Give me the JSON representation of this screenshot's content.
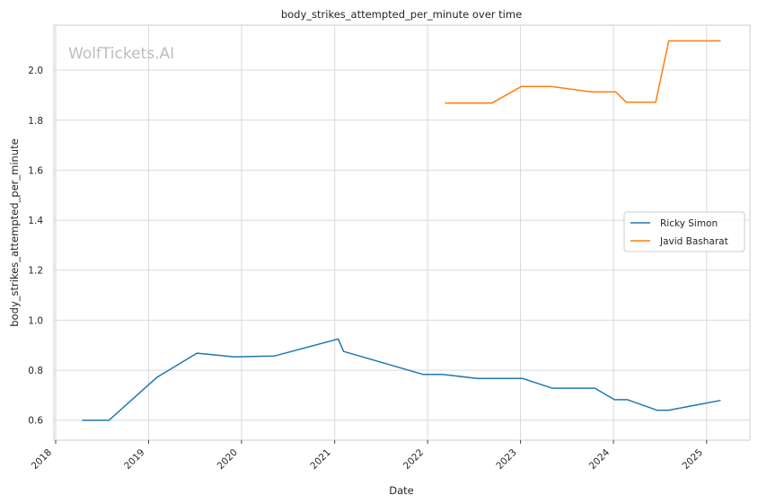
{
  "chart_data": {
    "type": "line",
    "title": "body_strikes_attempted_per_minute over time",
    "xlabel": "Date",
    "ylabel": "body_strikes_attempted_per_minute",
    "watermark": "WolfTickets.AI",
    "x_ticks": [
      "2018",
      "2019",
      "2020",
      "2021",
      "2022",
      "2023",
      "2024",
      "2025"
    ],
    "y_ticks": [
      "0.6",
      "0.8",
      "1.0",
      "1.2",
      "1.4",
      "1.6",
      "1.8",
      "2.0"
    ],
    "xlim": [
      "2017-12-25",
      "2025-06-20"
    ],
    "ylim": [
      0.52,
      2.18
    ],
    "grid": true,
    "legend_position": "center-right",
    "series": [
      {
        "name": "Ricky Simon",
        "color": "#1f77b4",
        "points": [
          [
            "2018-04-15",
            0.6
          ],
          [
            "2018-07-30",
            0.6
          ],
          [
            "2019-02-01",
            0.77
          ],
          [
            "2019-07-10",
            0.868
          ],
          [
            "2019-12-05",
            0.853
          ],
          [
            "2020-05-10",
            0.857
          ],
          [
            "2021-01-15",
            0.925
          ],
          [
            "2021-02-05",
            0.875
          ],
          [
            "2021-12-15",
            0.783
          ],
          [
            "2022-03-01",
            0.783
          ],
          [
            "2022-07-15",
            0.767
          ],
          [
            "2023-01-10",
            0.767
          ],
          [
            "2023-05-05",
            0.728
          ],
          [
            "2023-10-20",
            0.728
          ],
          [
            "2024-01-05",
            0.682
          ],
          [
            "2024-02-25",
            0.682
          ],
          [
            "2024-06-20",
            0.64
          ],
          [
            "2024-08-05",
            0.64
          ],
          [
            "2025-02-25",
            0.679
          ]
        ]
      },
      {
        "name": "Javid Basharat",
        "color": "#ff7f0e",
        "points": [
          [
            "2022-03-10",
            1.868
          ],
          [
            "2022-09-10",
            1.868
          ],
          [
            "2023-01-05",
            1.935
          ],
          [
            "2023-05-01",
            1.935
          ],
          [
            "2023-10-05",
            1.913
          ],
          [
            "2024-01-10",
            1.913
          ],
          [
            "2024-02-20",
            1.872
          ],
          [
            "2024-06-15",
            1.872
          ],
          [
            "2024-08-05",
            2.117
          ],
          [
            "2025-02-25",
            2.117
          ]
        ]
      }
    ]
  }
}
